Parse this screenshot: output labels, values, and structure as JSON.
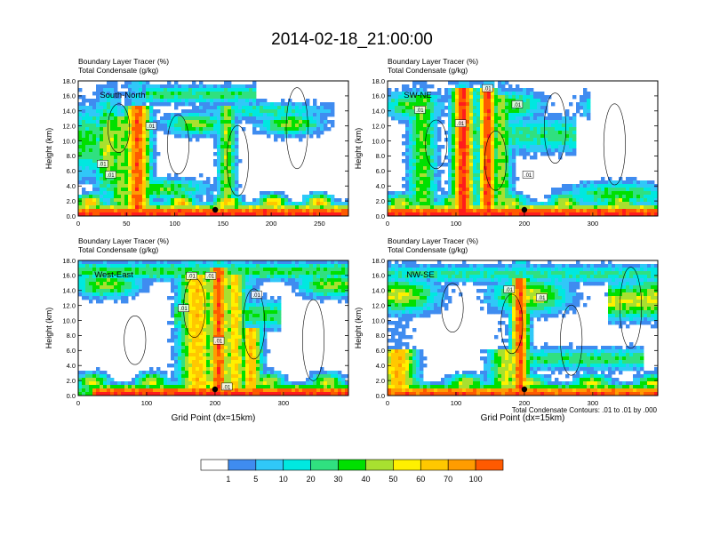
{
  "figure_title": "2014-02-18_21:00:00",
  "colorbar": {
    "labels": [
      "1",
      "5",
      "10",
      "20",
      "30",
      "40",
      "50",
      "60",
      "70",
      "100"
    ],
    "colors": [
      "#ffffff",
      "#3f8cf0",
      "#30c8f8",
      "#00e8e0",
      "#30e080",
      "#00e000",
      "#a8e030",
      "#fff000",
      "#ffc800",
      "#ff9c00",
      "#ff5a00",
      "#ff1c1c"
    ]
  },
  "footer_note": "Total Condensate Contours: .01 to .01 by .000",
  "chart_data": [
    {
      "type": "heatmap",
      "panel_label": "South-North",
      "title_line1": "Boundary Layer Tracer   (%)",
      "title_line2": "Total Condensate   (g/kg)",
      "ylabel": "Height (km)",
      "xlabel": "",
      "xlim": [
        0,
        280
      ],
      "ylim": [
        0,
        18
      ],
      "xticks": [
        0,
        50,
        100,
        150,
        200,
        250
      ],
      "yticks": [
        "0.0",
        "2.0",
        "4.0",
        "6.0",
        "8.0",
        "10.0",
        "12.0",
        "14.0",
        "16.0",
        "18.0"
      ],
      "marker_x": 142,
      "contour_labels": [
        ".01",
        ".01",
        ".01"
      ]
    },
    {
      "type": "heatmap",
      "panel_label": "SW-NE",
      "title_line1": "Boundary Layer Tracer   (%)",
      "title_line2": "Total Condensate   (g/kg)",
      "ylabel": "Height (km)",
      "xlabel": "",
      "xlim": [
        0,
        395
      ],
      "ylim": [
        0,
        18
      ],
      "xticks": [
        0,
        100,
        200,
        300
      ],
      "yticks": [
        "0.0",
        "2.0",
        "4.0",
        "6.0",
        "8.0",
        "10.0",
        "12.0",
        "14.0",
        "16.0",
        "18.0"
      ],
      "marker_x": 200,
      "contour_labels": [
        ".01",
        ".01",
        ".01",
        ".01",
        ".01"
      ]
    },
    {
      "type": "heatmap",
      "panel_label": "West-East",
      "title_line1": "Boundary Layer Tracer   (%)",
      "title_line2": "Total Condensate   (g/kg)",
      "ylabel": "Height (km)",
      "xlabel": "Grid Point (dx=15km)",
      "xlim": [
        0,
        395
      ],
      "ylim": [
        0,
        18
      ],
      "xticks": [
        0,
        100,
        200,
        300
      ],
      "yticks": [
        "0.0",
        "2.0",
        "4.0",
        "6.0",
        "8.0",
        "10.0",
        "12.0",
        "14.0",
        "16.0",
        "18.0"
      ],
      "marker_x": 200,
      "contour_labels": [
        ".01",
        ".01",
        ".01",
        ".01",
        ".01",
        ".01"
      ]
    },
    {
      "type": "heatmap",
      "panel_label": "NW-SE",
      "title_line1": "Boundary Layer Tracer   (%)",
      "title_line2": "Total Condensate   (g/kg)",
      "ylabel": "Height (km)",
      "xlabel": "Grid Point (dx=15km)",
      "xlim": [
        0,
        395
      ],
      "ylim": [
        0,
        18
      ],
      "xticks": [
        0,
        100,
        200,
        300
      ],
      "yticks": [
        "0.0",
        "2.0",
        "4.0",
        "6.0",
        "8.0",
        "10.0",
        "12.0",
        "14.0",
        "16.0",
        "18.0"
      ],
      "marker_x": 200,
      "contour_labels": [
        ".01",
        ".01"
      ]
    }
  ]
}
